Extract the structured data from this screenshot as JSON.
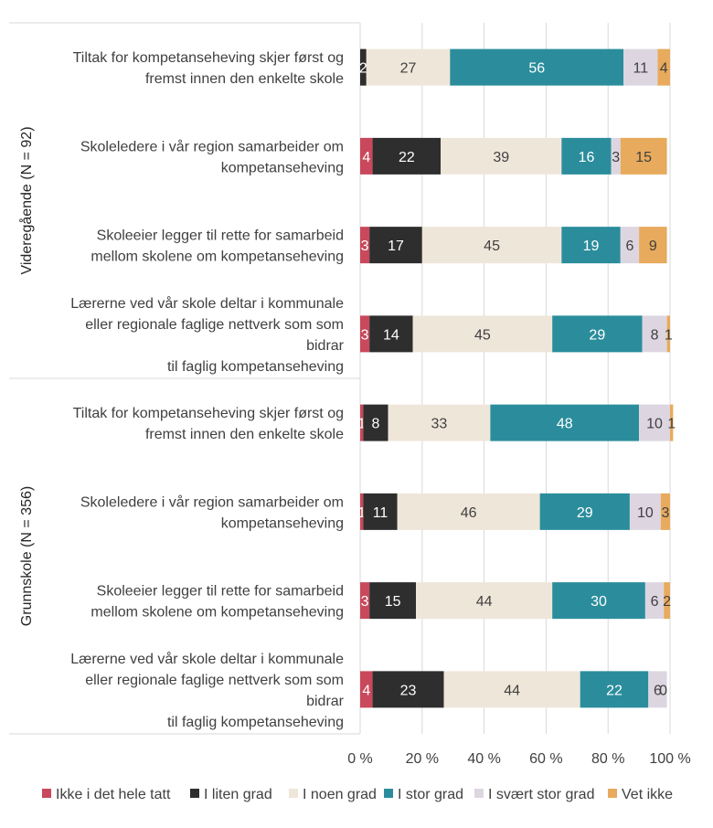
{
  "chart_data": {
    "type": "bar",
    "orientation": "horizontal",
    "stacked": true,
    "percent": true,
    "groups": [
      {
        "label": "Videregående (N = 92)",
        "categories": [
          [
            "Tiltak for kompetanseheving skjer først og",
            "fremst innen den enkelte skole"
          ],
          [
            "Skoleledere i vår region samarbeider om",
            "kompetanseheving"
          ],
          [
            "Skoleeier legger til rette for samarbeid",
            "mellom skolene om kompetanseheving"
          ],
          [
            "Lærerne ved vår skole deltar i kommunale",
            "eller regionale faglige nettverk som som",
            "bidrar",
            "til faglig kompetanseheving"
          ]
        ],
        "values": [
          [
            2,
            27,
            56,
            11,
            4
          ],
          [
            4,
            22,
            39,
            16,
            3,
            15
          ],
          [
            3,
            17,
            45,
            19,
            6,
            9
          ],
          [
            3,
            14,
            45,
            29,
            8,
            1
          ]
        ]
      },
      {
        "label": "Grunnskole (N = 356)",
        "categories": [
          [
            "Tiltak for kompetanseheving skjer først og",
            "fremst innen den enkelte skole"
          ],
          [
            "Skoleledere i vår region samarbeider om",
            "kompetanseheving"
          ],
          [
            "Skoleeier legger til rette for samarbeid",
            "mellom skolene om kompetanseheving"
          ],
          [
            "Lærerne ved vår skole deltar i kommunale",
            "eller regionale faglige nettverk som som",
            "bidrar",
            "til faglig kompetanseheving"
          ]
        ],
        "values": [
          [
            1,
            8,
            33,
            48,
            10,
            1
          ],
          [
            1,
            11,
            46,
            29,
            10,
            3
          ],
          [
            3,
            15,
            44,
            30,
            6,
            2
          ],
          [
            4,
            23,
            44,
            22,
            6,
            0
          ]
        ]
      }
    ],
    "row_series_order": [
      [
        1,
        2,
        3,
        4,
        5
      ],
      [
        0,
        1,
        2,
        3,
        4,
        5
      ],
      [
        0,
        1,
        2,
        3,
        4,
        5
      ],
      [
        0,
        1,
        2,
        3,
        4,
        5
      ],
      [
        0,
        1,
        2,
        3,
        4,
        5
      ],
      [
        0,
        1,
        2,
        3,
        4,
        5
      ],
      [
        0,
        1,
        2,
        3,
        4,
        5
      ],
      [
        0,
        1,
        2,
        3,
        4,
        5
      ]
    ],
    "series": [
      {
        "name": "Ikke i det hele tatt",
        "color": "#c9485b",
        "label_color": "#ffffff"
      },
      {
        "name": "I liten grad",
        "color": "#2e2e2e",
        "label_color": "#ffffff"
      },
      {
        "name": "I noen grad",
        "color": "#efe6da",
        "label_color": "#404040"
      },
      {
        "name": "I stor grad",
        "color": "#2b8d9c",
        "label_color": "#ffffff"
      },
      {
        "name": "I svært stor grad",
        "color": "#ddd6e1",
        "label_color": "#404040"
      },
      {
        "name": "Vet ikke",
        "color": "#e8aa5c",
        "label_color": "#404040"
      }
    ],
    "xlim": [
      0,
      100
    ],
    "xticks": [
      "0 %",
      "20 %",
      "40 %",
      "60 %",
      "80 %",
      "100 %"
    ],
    "gridlines": true,
    "legend_position": "bottom"
  }
}
